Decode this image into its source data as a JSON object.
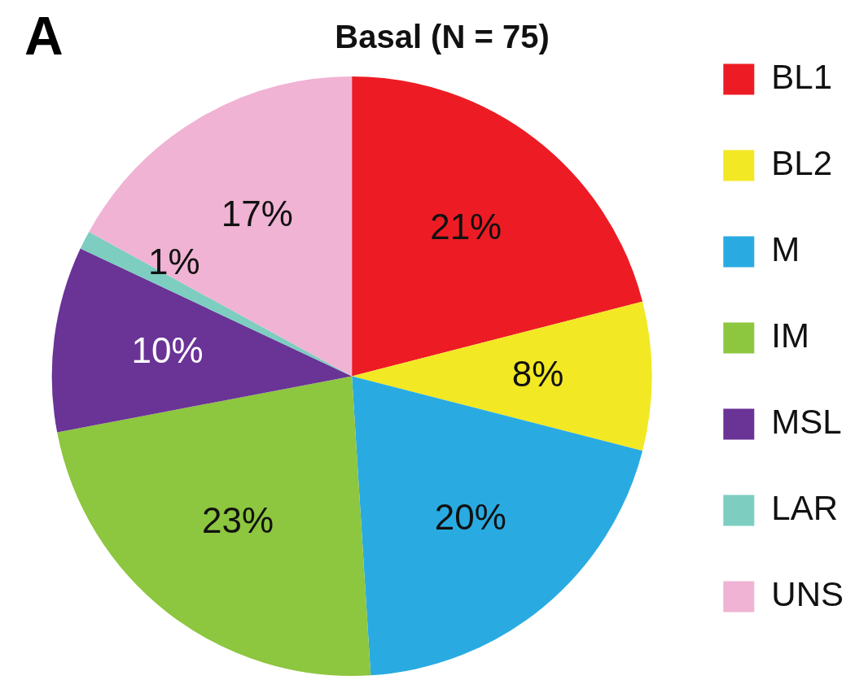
{
  "chart_data": {
    "type": "pie",
    "title": "Basal (N = 75)",
    "annotations": [
      "A"
    ],
    "categories": [
      "BL1",
      "BL2",
      "M",
      "IM",
      "MSL",
      "LAR",
      "UNS"
    ],
    "values": [
      21,
      8,
      20,
      23,
      10,
      1,
      17
    ],
    "value_labels": [
      "21%",
      "8%",
      "20%",
      "23%",
      "10%",
      "1%",
      "17%"
    ],
    "colors": [
      "#ed1c24",
      "#f2e824",
      "#29abe2",
      "#8dc63f",
      "#6a3396",
      "#7dcdc0",
      "#f0b3d3"
    ],
    "legend": "right"
  }
}
